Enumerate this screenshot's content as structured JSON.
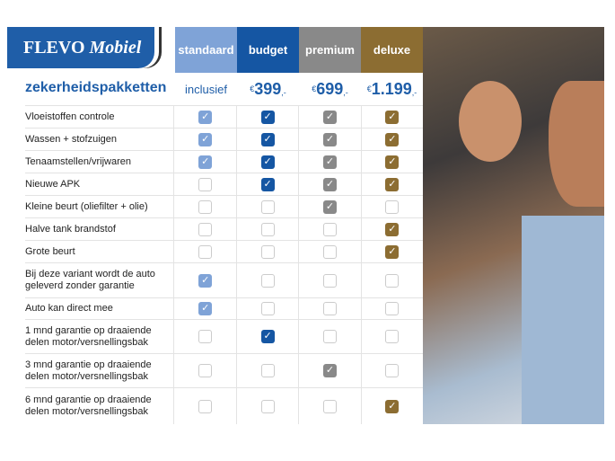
{
  "logo": {
    "brand": "FLEVO",
    "sub": "Mobiel"
  },
  "title": "zekerheidspakketten",
  "colors": {
    "standaard": "#7fa3d7",
    "budget": "#1556a3",
    "premium": "#898989",
    "deluxe": "#8c6d32"
  },
  "columns": [
    {
      "key": "standaard",
      "label": "standaard",
      "price": "inclusief"
    },
    {
      "key": "budget",
      "label": "budget",
      "currency": "€",
      "price": "399",
      "suffix": ",-"
    },
    {
      "key": "premium",
      "label": "premium",
      "currency": "€",
      "price": "699",
      "suffix": ",-"
    },
    {
      "key": "deluxe",
      "label": "deluxe",
      "currency": "€",
      "price": "1.199",
      "suffix": ",-"
    }
  ],
  "rows": [
    {
      "label": "Vloeistoffen controle",
      "checks": [
        1,
        1,
        1,
        1
      ]
    },
    {
      "label": "Wassen + stofzuigen",
      "checks": [
        1,
        1,
        1,
        1
      ]
    },
    {
      "label": "Tenaamstellen/vrijwaren",
      "checks": [
        1,
        1,
        1,
        1
      ]
    },
    {
      "label": "Nieuwe APK",
      "checks": [
        0,
        1,
        1,
        1
      ]
    },
    {
      "label": "Kleine beurt (oliefilter + olie)",
      "checks": [
        0,
        0,
        1,
        0
      ]
    },
    {
      "label": "Halve tank brandstof",
      "checks": [
        0,
        0,
        0,
        1
      ]
    },
    {
      "label": "Grote beurt",
      "checks": [
        0,
        0,
        0,
        1
      ]
    },
    {
      "label": "Bij deze variant wordt de auto geleverd zonder garantie",
      "checks": [
        1,
        0,
        0,
        0
      ]
    },
    {
      "label": "Auto kan direct mee",
      "checks": [
        1,
        0,
        0,
        0
      ]
    },
    {
      "label": "1 mnd garantie op draaiende delen motor/versnellingsbak",
      "checks": [
        0,
        1,
        0,
        0
      ]
    },
    {
      "label": "3 mnd garantie op draaiende delen motor/versnellingsbak",
      "checks": [
        0,
        0,
        1,
        0
      ]
    },
    {
      "label": "6 mnd garantie op draaiende delen motor/versnellingsbak",
      "checks": [
        0,
        0,
        0,
        1
      ]
    }
  ]
}
